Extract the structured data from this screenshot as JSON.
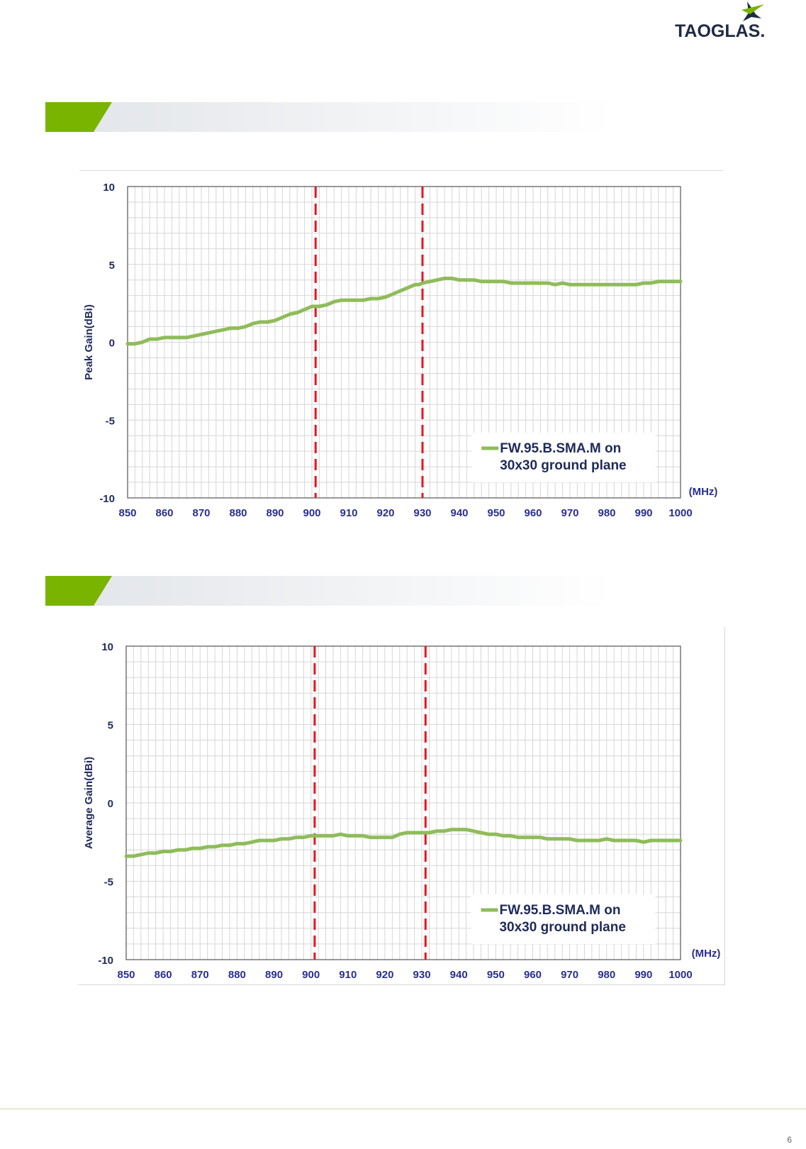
{
  "brand": {
    "logo_text": "TAOGLAS.",
    "accent": "#78b400",
    "navy": "#1f2a44"
  },
  "page_number": "6",
  "charts": [
    {
      "id": "peak",
      "type": "line",
      "ylabel": "Peak Gain(dBi)",
      "xunit": "(MHz)",
      "ylim": [
        -10,
        10
      ],
      "xlim": [
        850,
        1000
      ],
      "yticks": [
        "10",
        "5",
        "0",
        "-5",
        "-10"
      ],
      "xticks": [
        "850",
        "860",
        "870",
        "880",
        "890",
        "900",
        "910",
        "920",
        "930",
        "940",
        "950",
        "960",
        "970",
        "980",
        "990",
        "1000"
      ],
      "markers": [
        901,
        930
      ],
      "legend": {
        "line1": "FW.95.B.SMA.M on",
        "line2": "30x30 ground plane"
      },
      "series": [
        {
          "name": "FW.95.B.SMA.M on 30x30 ground plane",
          "color": "#8fbc5a",
          "x": [
            850,
            852,
            854,
            856,
            858,
            860,
            862,
            864,
            866,
            868,
            870,
            872,
            874,
            876,
            878,
            880,
            882,
            884,
            886,
            888,
            890,
            892,
            894,
            896,
            898,
            900,
            902,
            904,
            906,
            908,
            910,
            912,
            914,
            916,
            918,
            920,
            922,
            924,
            926,
            928,
            929,
            930,
            932,
            934,
            936,
            938,
            940,
            942,
            944,
            946,
            948,
            950,
            952,
            954,
            956,
            958,
            960,
            962,
            964,
            966,
            968,
            970,
            972,
            974,
            976,
            978,
            980,
            982,
            984,
            986,
            988,
            990,
            992,
            994,
            996,
            998,
            1000
          ],
          "y": [
            -0.1,
            -0.1,
            0.0,
            0.2,
            0.2,
            0.3,
            0.3,
            0.3,
            0.3,
            0.4,
            0.5,
            0.6,
            0.7,
            0.8,
            0.9,
            0.9,
            1.0,
            1.2,
            1.3,
            1.3,
            1.4,
            1.6,
            1.8,
            1.9,
            2.1,
            2.3,
            2.3,
            2.4,
            2.6,
            2.7,
            2.7,
            2.7,
            2.7,
            2.8,
            2.8,
            2.9,
            3.1,
            3.3,
            3.5,
            3.7,
            3.7,
            3.8,
            3.9,
            4.0,
            4.1,
            4.1,
            4.0,
            4.0,
            4.0,
            3.9,
            3.9,
            3.9,
            3.9,
            3.8,
            3.8,
            3.8,
            3.8,
            3.8,
            3.8,
            3.7,
            3.8,
            3.7,
            3.7,
            3.7,
            3.7,
            3.7,
            3.7,
            3.7,
            3.7,
            3.7,
            3.7,
            3.8,
            3.8,
            3.9,
            3.9,
            3.9,
            3.9
          ]
        }
      ]
    },
    {
      "id": "average",
      "type": "line",
      "ylabel": "Average Gain(dBi)",
      "xunit": "(MHz)",
      "ylim": [
        -10,
        10
      ],
      "xlim": [
        850,
        1000
      ],
      "yticks": [
        "10",
        "5",
        "0",
        "-5",
        "-10"
      ],
      "xticks": [
        "850",
        "860",
        "870",
        "880",
        "890",
        "900",
        "910",
        "920",
        "930",
        "940",
        "950",
        "960",
        "970",
        "980",
        "990",
        "1000"
      ],
      "markers": [
        901,
        931
      ],
      "legend": {
        "line1": "FW.95.B.SMA.M on",
        "line2": "30x30 ground plane"
      },
      "series": [
        {
          "name": "FW.95.B.SMA.M on 30x30 ground plane",
          "color": "#8fbc5a",
          "x": [
            850,
            852,
            854,
            856,
            858,
            860,
            862,
            864,
            866,
            868,
            870,
            872,
            874,
            876,
            878,
            880,
            882,
            884,
            886,
            888,
            890,
            892,
            894,
            896,
            898,
            900,
            902,
            904,
            906,
            908,
            910,
            912,
            914,
            916,
            918,
            920,
            922,
            923,
            924,
            926,
            928,
            930,
            932,
            934,
            936,
            938,
            940,
            942,
            944,
            946,
            948,
            950,
            952,
            954,
            956,
            958,
            960,
            962,
            964,
            966,
            968,
            970,
            972,
            974,
            976,
            978,
            980,
            982,
            984,
            986,
            988,
            990,
            992,
            994,
            996,
            998,
            1000
          ],
          "y": [
            -3.4,
            -3.4,
            -3.3,
            -3.2,
            -3.2,
            -3.1,
            -3.1,
            -3.0,
            -3.0,
            -2.9,
            -2.9,
            -2.8,
            -2.8,
            -2.7,
            -2.7,
            -2.6,
            -2.6,
            -2.5,
            -2.4,
            -2.4,
            -2.4,
            -2.3,
            -2.3,
            -2.2,
            -2.2,
            -2.1,
            -2.1,
            -2.1,
            -2.1,
            -2.0,
            -2.1,
            -2.1,
            -2.1,
            -2.2,
            -2.2,
            -2.2,
            -2.2,
            -2.1,
            -2.0,
            -1.9,
            -1.9,
            -1.9,
            -1.9,
            -1.8,
            -1.8,
            -1.7,
            -1.7,
            -1.7,
            -1.8,
            -1.9,
            -2.0,
            -2.0,
            -2.1,
            -2.1,
            -2.2,
            -2.2,
            -2.2,
            -2.2,
            -2.3,
            -2.3,
            -2.3,
            -2.3,
            -2.4,
            -2.4,
            -2.4,
            -2.4,
            -2.3,
            -2.4,
            -2.4,
            -2.4,
            -2.4,
            -2.5,
            -2.4,
            -2.4,
            -2.4,
            -2.4,
            -2.4
          ]
        }
      ]
    }
  ]
}
